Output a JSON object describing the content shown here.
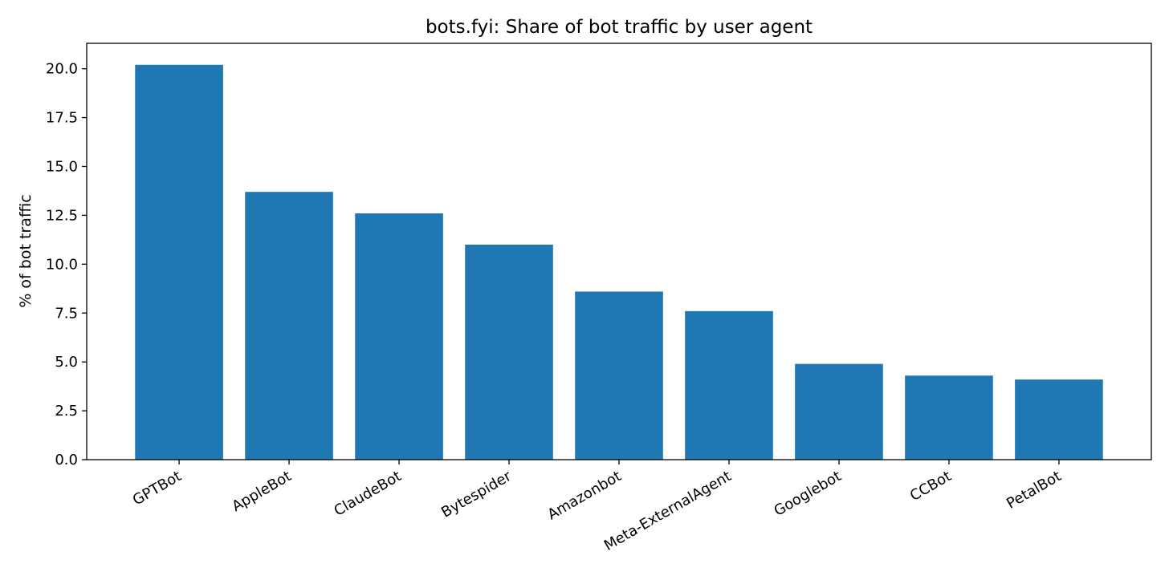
{
  "chart_data": {
    "type": "bar",
    "title": "bots.fyi: Share of bot traffic by user agent",
    "xlabel": "",
    "ylabel": "% of bot traffic",
    "categories": [
      "GPTBot",
      "AppleBot",
      "ClaudeBot",
      "Bytespider",
      "Amazonbot",
      "Meta-ExternalAgent",
      "Googlebot",
      "CCBot",
      "PetalBot"
    ],
    "values": [
      20.2,
      13.7,
      12.6,
      11.0,
      8.6,
      7.6,
      4.9,
      4.3,
      4.1
    ],
    "ylim": [
      0,
      21.3
    ],
    "yticks": [
      "0.0",
      "2.5",
      "5.0",
      "7.5",
      "10.0",
      "12.5",
      "15.0",
      "17.5",
      "20.0"
    ],
    "ytick_values": [
      0,
      2.5,
      5,
      7.5,
      10,
      12.5,
      15,
      17.5,
      20
    ],
    "bar_color": "#1f77b4",
    "grid": false,
    "legend": "none"
  }
}
